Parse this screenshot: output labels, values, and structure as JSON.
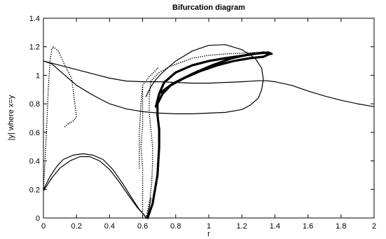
{
  "chart_data": {
    "type": "scatter",
    "title": "Bifurcation diagram",
    "xlabel": "r",
    "ylabel": "|y| where x=y",
    "xlim": [
      0,
      2
    ],
    "ylim": [
      0,
      1.4
    ],
    "grid": false,
    "legend": "none",
    "color": "#000000",
    "x_ticks": [
      0,
      0.2,
      0.4,
      0.6,
      0.8,
      1,
      1.2,
      1.4,
      1.6,
      1.8,
      2
    ],
    "y_ticks": [
      0,
      0.2,
      0.4,
      0.6,
      0.8,
      1,
      1.2,
      1.4
    ],
    "series": [
      {
        "style": "line",
        "points": [
          [
            0,
            1.1
          ],
          [
            0.1,
            1.07
          ],
          [
            0.2,
            1.04
          ],
          [
            0.3,
            1.01
          ],
          [
            0.4,
            0.98
          ],
          [
            0.5,
            0.96
          ],
          [
            0.6,
            0.955
          ],
          [
            0.7,
            0.955
          ],
          [
            0.8,
            0.95
          ],
          [
            0.9,
            0.945
          ],
          [
            1.0,
            0.945
          ],
          [
            1.1,
            0.95
          ],
          [
            1.2,
            0.955
          ],
          [
            1.3,
            0.962
          ],
          [
            1.35,
            0.962
          ],
          [
            1.4,
            0.955
          ],
          [
            1.5,
            0.93
          ],
          [
            1.6,
            0.89
          ],
          [
            1.7,
            0.855
          ],
          [
            1.8,
            0.825
          ],
          [
            1.9,
            0.8
          ],
          [
            2.0,
            0.78
          ]
        ]
      },
      {
        "style": "line",
        "points": [
          [
            0,
            1.1
          ],
          [
            0.05,
            1.08
          ],
          [
            0.1,
            1.03
          ],
          [
            0.15,
            0.98
          ],
          [
            0.2,
            0.93
          ],
          [
            0.3,
            0.86
          ],
          [
            0.4,
            0.8
          ],
          [
            0.5,
            0.765
          ],
          [
            0.6,
            0.745
          ],
          [
            0.7,
            0.735
          ],
          [
            0.8,
            0.73
          ],
          [
            0.9,
            0.73
          ],
          [
            1.0,
            0.735
          ],
          [
            1.1,
            0.74
          ],
          [
            1.2,
            0.76
          ],
          [
            1.25,
            0.79
          ],
          [
            1.3,
            0.84
          ],
          [
            1.32,
            0.9
          ],
          [
            1.33,
            0.97
          ],
          [
            1.32,
            1.05
          ],
          [
            1.28,
            1.12
          ],
          [
            1.2,
            1.18
          ],
          [
            1.1,
            1.215
          ],
          [
            1.0,
            1.21
          ],
          [
            0.9,
            1.17
          ],
          [
            0.8,
            1.1
          ],
          [
            0.72,
            1.02
          ],
          [
            0.68,
            0.97
          ],
          [
            0.65,
            0.92
          ],
          [
            0.62,
            0.85
          ]
        ]
      },
      {
        "style": "line",
        "points": [
          [
            0.0,
            0.2
          ],
          [
            0.04,
            0.29
          ],
          [
            0.08,
            0.36
          ],
          [
            0.12,
            0.41
          ],
          [
            0.18,
            0.44
          ],
          [
            0.24,
            0.45
          ],
          [
            0.3,
            0.44
          ],
          [
            0.36,
            0.41
          ],
          [
            0.42,
            0.34
          ],
          [
            0.48,
            0.24
          ],
          [
            0.54,
            0.13
          ],
          [
            0.58,
            0.06
          ],
          [
            0.61,
            0.02
          ],
          [
            0.62,
            0.0
          ],
          [
            0.63,
            0.02
          ],
          [
            0.64,
            0.07
          ],
          [
            0.65,
            0.14
          ]
        ]
      },
      {
        "style": "line",
        "points": [
          [
            0.0,
            0.19
          ],
          [
            0.05,
            0.28
          ],
          [
            0.1,
            0.35
          ],
          [
            0.16,
            0.4
          ],
          [
            0.22,
            0.43
          ],
          [
            0.28,
            0.43
          ],
          [
            0.34,
            0.4
          ],
          [
            0.4,
            0.34
          ],
          [
            0.46,
            0.25
          ],
          [
            0.52,
            0.15
          ],
          [
            0.57,
            0.07
          ],
          [
            0.61,
            0.02
          ],
          [
            0.62,
            0.0
          ]
        ]
      },
      {
        "style": "dotted",
        "points": [
          [
            0.0,
            0.2
          ],
          [
            0.01,
            0.4
          ],
          [
            0.02,
            0.65
          ],
          [
            0.03,
            0.92
          ],
          [
            0.04,
            1.1
          ],
          [
            0.05,
            1.18
          ],
          [
            0.06,
            1.2
          ],
          [
            0.09,
            1.17
          ],
          [
            0.13,
            1.07
          ],
          [
            0.17,
            0.98
          ],
          [
            0.18,
            0.9
          ],
          [
            0.19,
            0.8
          ],
          [
            0.2,
            0.71
          ],
          [
            0.18,
            0.68
          ],
          [
            0.15,
            0.66
          ],
          [
            0.12,
            0.63
          ]
        ]
      },
      {
        "style": "dotted",
        "points": [
          [
            0.62,
            0.0
          ],
          [
            0.63,
            0.05
          ],
          [
            0.645,
            0.14
          ],
          [
            0.655,
            0.25
          ],
          [
            0.66,
            0.38
          ],
          [
            0.66,
            0.5
          ],
          [
            0.65,
            0.62
          ],
          [
            0.64,
            0.74
          ],
          [
            0.64,
            0.85
          ],
          [
            0.65,
            0.96
          ],
          [
            0.7,
            1.02
          ],
          [
            0.76,
            1.06
          ],
          [
            0.83,
            1.09
          ],
          [
            0.9,
            1.12
          ],
          [
            1.0,
            1.14
          ],
          [
            1.1,
            1.15
          ],
          [
            1.2,
            1.155
          ],
          [
            1.3,
            1.16
          ],
          [
            1.35,
            1.155
          ]
        ]
      },
      {
        "style": "dotted",
        "points": [
          [
            0.6,
            0.0
          ],
          [
            0.6,
            0.08
          ],
          [
            0.6,
            0.2
          ],
          [
            0.6,
            0.35
          ],
          [
            0.59,
            0.5
          ],
          [
            0.6,
            0.65
          ],
          [
            0.6,
            0.82
          ],
          [
            0.6,
            0.93
          ]
        ]
      },
      {
        "style": "dotted",
        "points": [
          [
            0.58,
            0.35
          ],
          [
            0.58,
            0.6
          ],
          [
            0.59,
            0.8
          ],
          [
            0.6,
            0.93
          ],
          [
            0.64,
            0.99
          ],
          [
            0.7,
            1.06
          ]
        ]
      },
      {
        "style": "thick",
        "points": [
          [
            0.63,
            0.0
          ],
          [
            0.66,
            0.1
          ],
          [
            0.69,
            0.3
          ],
          [
            0.7,
            0.5
          ],
          [
            0.7,
            0.62
          ],
          [
            0.69,
            0.72
          ],
          [
            0.69,
            0.8
          ],
          [
            0.72,
            0.87
          ],
          [
            0.77,
            0.93
          ],
          [
            0.85,
            0.98
          ],
          [
            0.95,
            1.03
          ],
          [
            1.05,
            1.07
          ],
          [
            1.15,
            1.1
          ],
          [
            1.25,
            1.12
          ],
          [
            1.33,
            1.13
          ],
          [
            1.37,
            1.15
          ],
          [
            1.33,
            1.16
          ],
          [
            1.22,
            1.14
          ],
          [
            1.1,
            1.12
          ],
          [
            1.0,
            1.1
          ],
          [
            0.9,
            1.07
          ],
          [
            0.8,
            1.02
          ],
          [
            0.73,
            0.95
          ],
          [
            0.7,
            0.87
          ],
          [
            0.68,
            0.78
          ]
        ]
      },
      {
        "style": "thick",
        "points": [
          [
            0.71,
            0.88
          ],
          [
            0.78,
            0.94
          ],
          [
            0.9,
            1.01
          ],
          [
            1.02,
            1.07
          ],
          [
            1.14,
            1.12
          ],
          [
            1.26,
            1.15
          ],
          [
            1.36,
            1.16
          ],
          [
            1.38,
            1.15
          ]
        ]
      }
    ]
  }
}
